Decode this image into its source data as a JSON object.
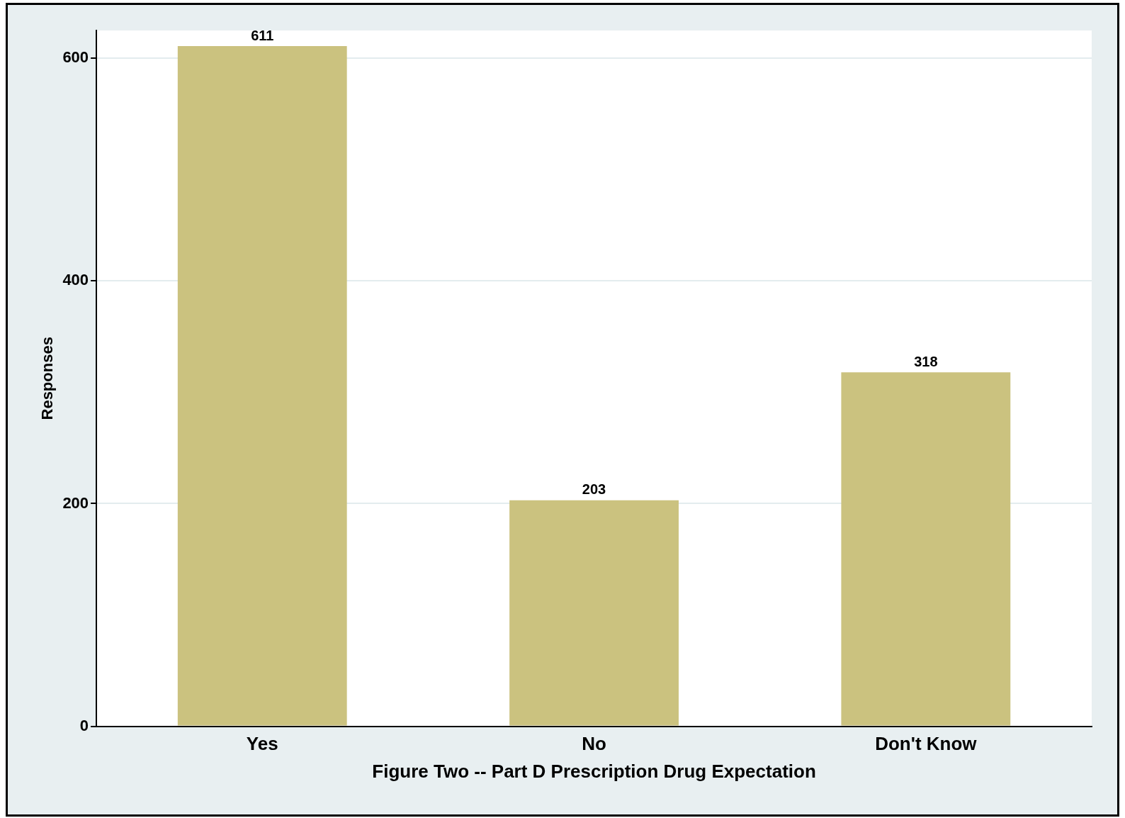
{
  "chart_data": {
    "type": "bar",
    "xlabel": "Figure Two -- Part D Prescription Drug Expectation",
    "ylabel": "Responses",
    "categories": [
      "Yes",
      "No",
      "Don't Know"
    ],
    "values": [
      611,
      203,
      318
    ],
    "color": "#cbc27f",
    "ylim": [
      0,
      625
    ],
    "yticks": [
      0,
      200,
      400,
      600
    ],
    "grid": "y",
    "data_labels": true
  }
}
